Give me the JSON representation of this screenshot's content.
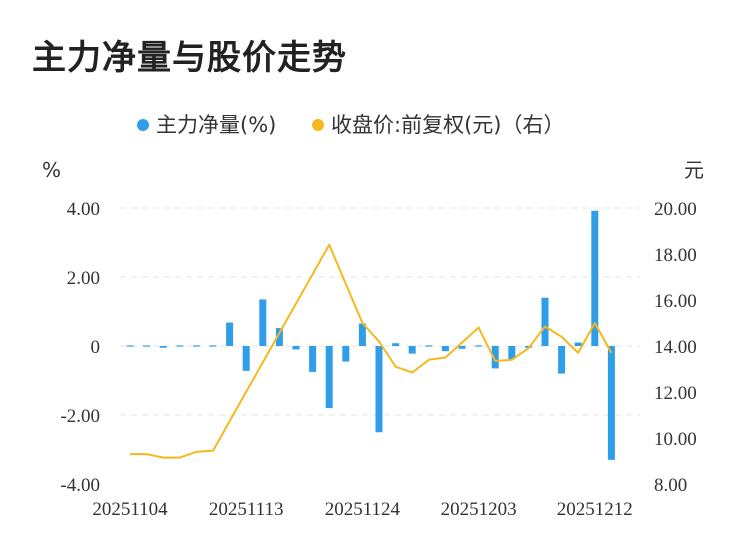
{
  "title": "主力净量与股价走势",
  "chart_data": {
    "type": "bar+line",
    "legend": [
      {
        "name": "主力净量(%)",
        "color": "#2f9ee8",
        "marker": "circle"
      },
      {
        "name": "收盘价:前复权(元)（右）",
        "color": "#f5b81e",
        "marker": "circle"
      }
    ],
    "legend_placement": "top",
    "y_left": {
      "unit": "%",
      "range": [
        -4,
        4
      ],
      "ticks": [
        "4.00",
        "2.00",
        "0",
        "-2.00",
        "-4.00"
      ]
    },
    "y_right": {
      "unit": "元",
      "range": [
        8,
        20
      ],
      "ticks": [
        "20.00",
        "18.00",
        "16.00",
        "14.00",
        "12.00",
        "10.00",
        "8.00"
      ]
    },
    "x_tick_labels": [
      "20251104",
      "20251113",
      "20251124",
      "20251203",
      "20251212"
    ],
    "x_tick_indices": [
      0,
      7,
      14,
      21,
      28
    ],
    "grid": "horizontal-dashed",
    "bar_color": "#2f9ee8",
    "line_color": "#f5b81e",
    "series": [
      {
        "name": "主力净量(%)",
        "kind": "bar",
        "axis": "left",
        "values": [
          0,
          0,
          -0.05,
          -0.02,
          0.03,
          -0.02,
          0.68,
          -0.72,
          1.35,
          0.52,
          -0.1,
          -0.75,
          -1.8,
          -0.45,
          0.65,
          -2.5,
          0.08,
          -0.22,
          0.02,
          -0.15,
          -0.08,
          -0.03,
          -0.65,
          -0.38,
          -0.05,
          1.4,
          -0.8,
          0.1,
          3.92,
          -3.3
        ]
      },
      {
        "name": "收盘价:前复权(元)",
        "kind": "line",
        "axis": "right",
        "values": [
          9.3,
          9.3,
          9.15,
          9.15,
          9.4,
          9.45,
          null,
          null,
          null,
          null,
          null,
          null,
          18.4,
          null,
          15.0,
          14.2,
          13.1,
          12.85,
          13.4,
          13.5,
          null,
          14.8,
          13.35,
          13.4,
          13.9,
          14.85,
          14.4,
          13.7,
          15.0,
          13.7
        ]
      }
    ]
  }
}
